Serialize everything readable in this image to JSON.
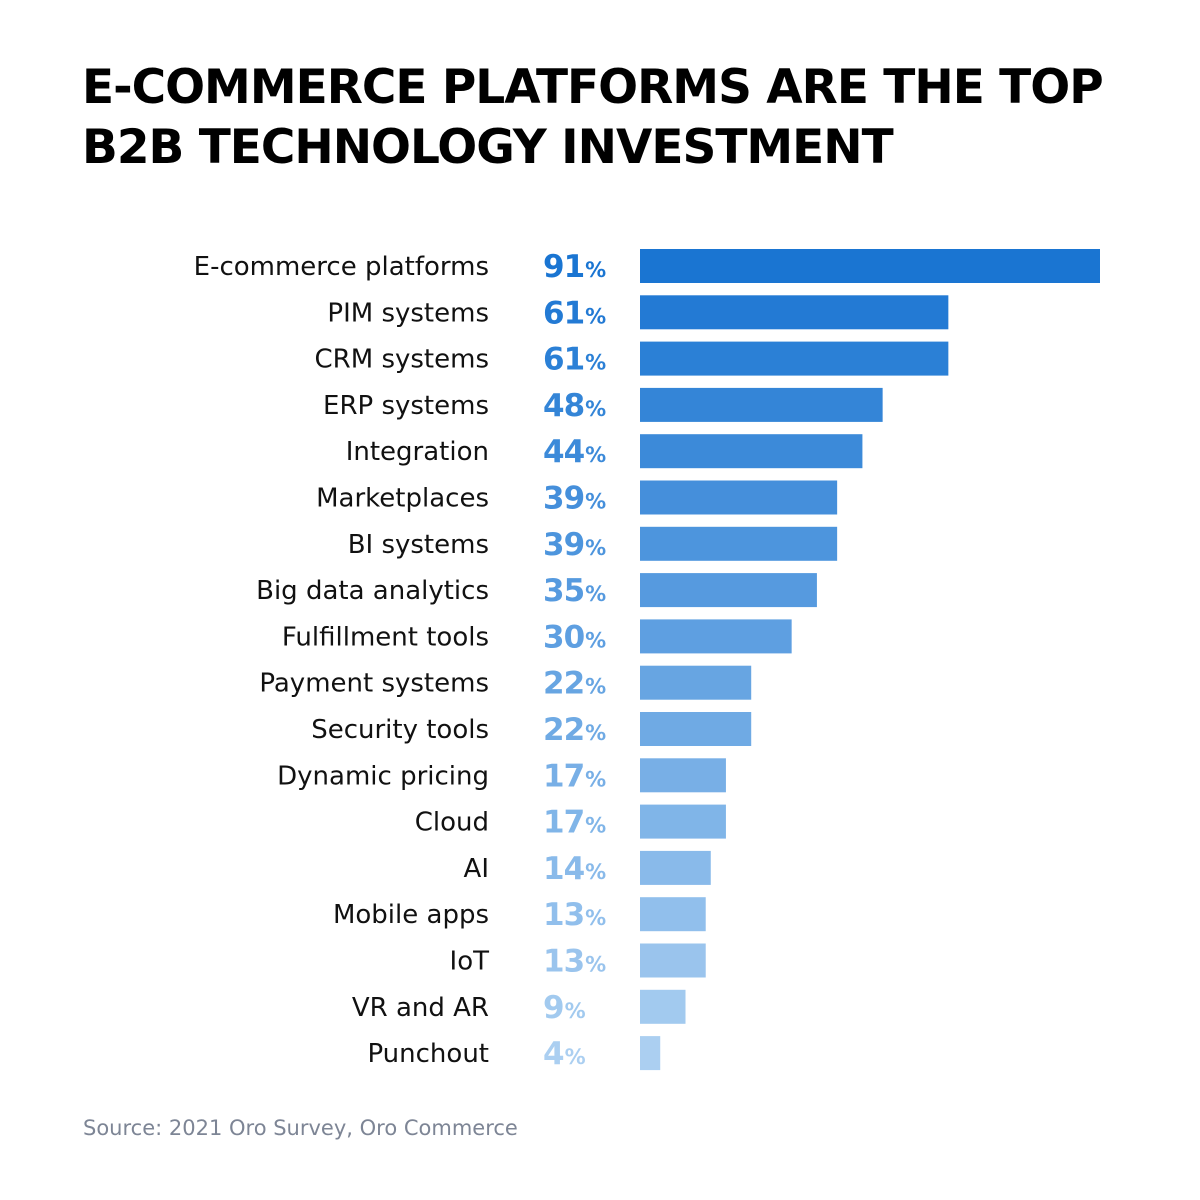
{
  "title_lines": [
    "E-COMMERCE PLATFORMS ARE THE TOP",
    "B2B TECHNOLOGY INVESTMENT"
  ],
  "source": "Source: 2021 Oro Survey, Oro Commerce",
  "chart_data": {
    "type": "bar",
    "orientation": "horizontal",
    "title": "E-COMMERCE PLATFORMS ARE THE TOP B2B TECHNOLOGY INVESTMENT",
    "categories": [
      "E-commerce platforms",
      "PIM systems",
      "CRM systems",
      "ERP systems",
      "Integration",
      "Marketplaces",
      "BI systems",
      "Big data analytics",
      "Fulfillment tools",
      "Payment systems",
      "Security tools",
      "Dynamic pricing",
      "Cloud",
      "AI",
      "Mobile apps",
      "IoT",
      "VR and AR",
      "Punchout"
    ],
    "values": [
      91,
      61,
      61,
      48,
      44,
      39,
      39,
      35,
      30,
      22,
      22,
      17,
      17,
      14,
      13,
      13,
      9,
      4
    ],
    "unit": "%",
    "xlim": [
      0,
      91
    ],
    "grid": false,
    "legend": false,
    "colors": {
      "bar_max": "#1a75d2",
      "bar_min": "#abcff1",
      "label_max": "#1a75d2",
      "label_min": "#abcff1"
    }
  }
}
